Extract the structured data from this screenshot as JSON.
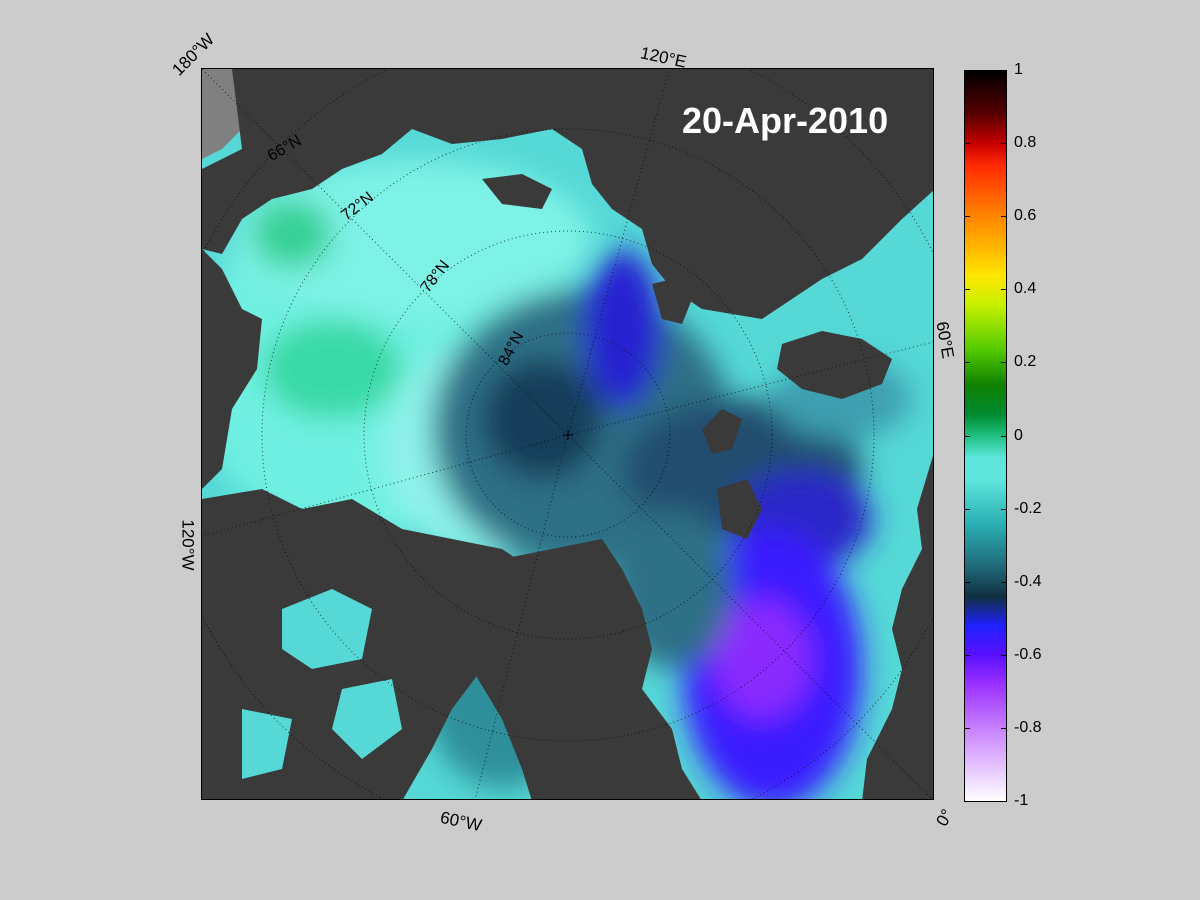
{
  "map": {
    "date_label": "20-Apr-2010",
    "longitude_labels": {
      "lon_180w": "180°W",
      "lon_120e": "120°E",
      "lon_60e": "60°E",
      "lon_120w": "120°W",
      "lon_60w": "60°W",
      "lon_0": "0°"
    },
    "latitude_labels": {
      "lat_66n": "66°N",
      "lat_72n": "72°N",
      "lat_78n": "78°N",
      "lat_84n": "84°N"
    },
    "colors": {
      "land": "#3a3a3a",
      "land_outside": "#808080",
      "background": "#cccccc",
      "ice_thin": "#5ee6dd",
      "ice_deep": "#3b17ff"
    }
  },
  "colorbar": {
    "ticks": [
      "1",
      "0.8",
      "0.6",
      "0.4",
      "0.2",
      "0",
      "-0.2",
      "-0.4",
      "-0.6",
      "-0.8",
      "-1"
    ],
    "range": [
      -1,
      1
    ]
  }
}
